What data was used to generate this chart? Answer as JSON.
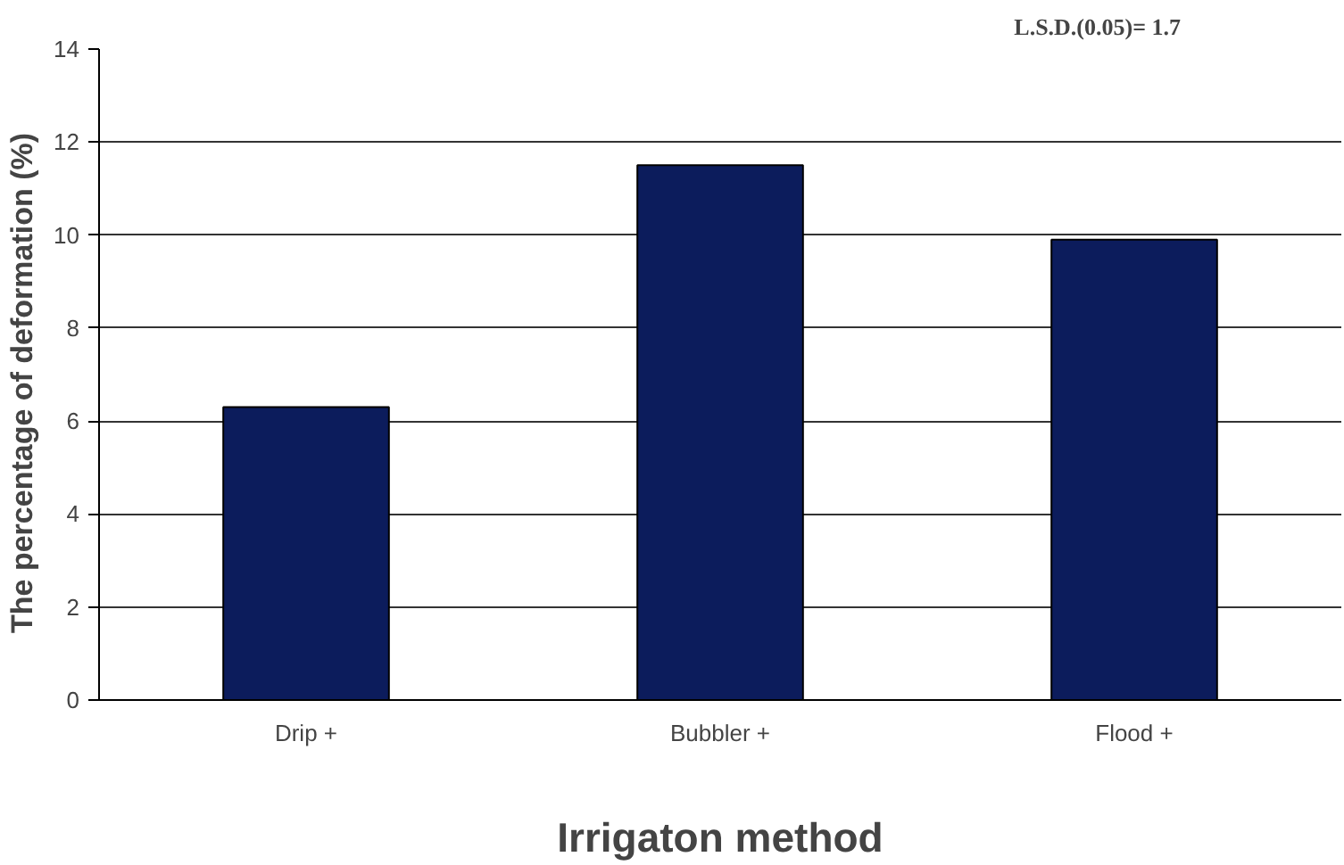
{
  "chart_data": {
    "type": "bar",
    "categories": [
      "Drip +",
      "Bubbler +",
      "Flood +"
    ],
    "values": [
      6.3,
      11.5,
      9.9
    ],
    "color": "#0c1c5c",
    "xlabel": "Irrigaton method",
    "ylabel": "The percentage of deformation   (%)",
    "annotations": [
      "L.S.D.(0.05)= 1.7"
    ],
    "ylim": [
      0,
      14
    ],
    "yticks": [
      0,
      2,
      4,
      6,
      8,
      10,
      12,
      14
    ],
    "grid": "y"
  }
}
